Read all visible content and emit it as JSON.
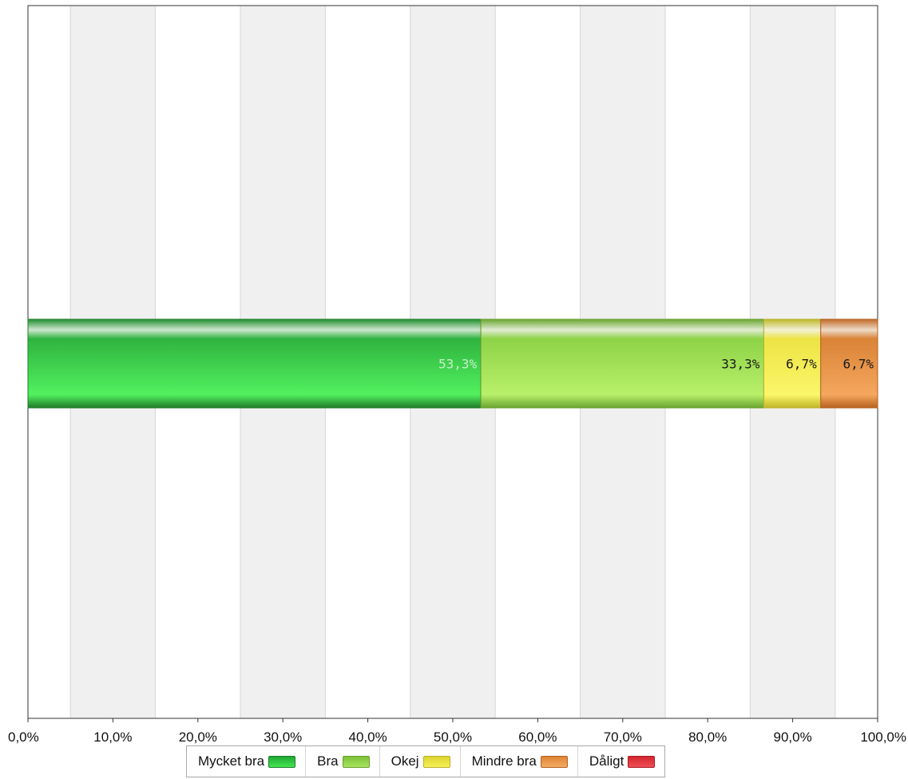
{
  "chart_data": {
    "type": "bar",
    "orientation": "horizontal",
    "stacked": true,
    "categories": [
      ""
    ],
    "series": [
      {
        "name": "Mycket bra",
        "values": [
          53.3
        ],
        "label": "53,3%",
        "color": "#2ecc3f"
      },
      {
        "name": "Bra",
        "values": [
          33.3
        ],
        "label": "33,3%",
        "color": "#97d94a"
      },
      {
        "name": "Okej",
        "values": [
          6.7
        ],
        "label": "6,7%",
        "color": "#f0ec4a"
      },
      {
        "name": "Mindre bra",
        "values": [
          6.7
        ],
        "label": "6,7%",
        "color": "#ee9a45"
      },
      {
        "name": "Dåligt",
        "values": [
          0
        ],
        "label": "",
        "color": "#e8363e"
      }
    ],
    "xlim": [
      0,
      100
    ],
    "x_ticks": [
      "0,0%",
      "10,0%",
      "20,0%",
      "30,0%",
      "40,0%",
      "50,0%",
      "60,0%",
      "70,0%",
      "80,0%",
      "90,0%",
      "100,0%"
    ],
    "grid": true,
    "legend_position": "bottom"
  }
}
